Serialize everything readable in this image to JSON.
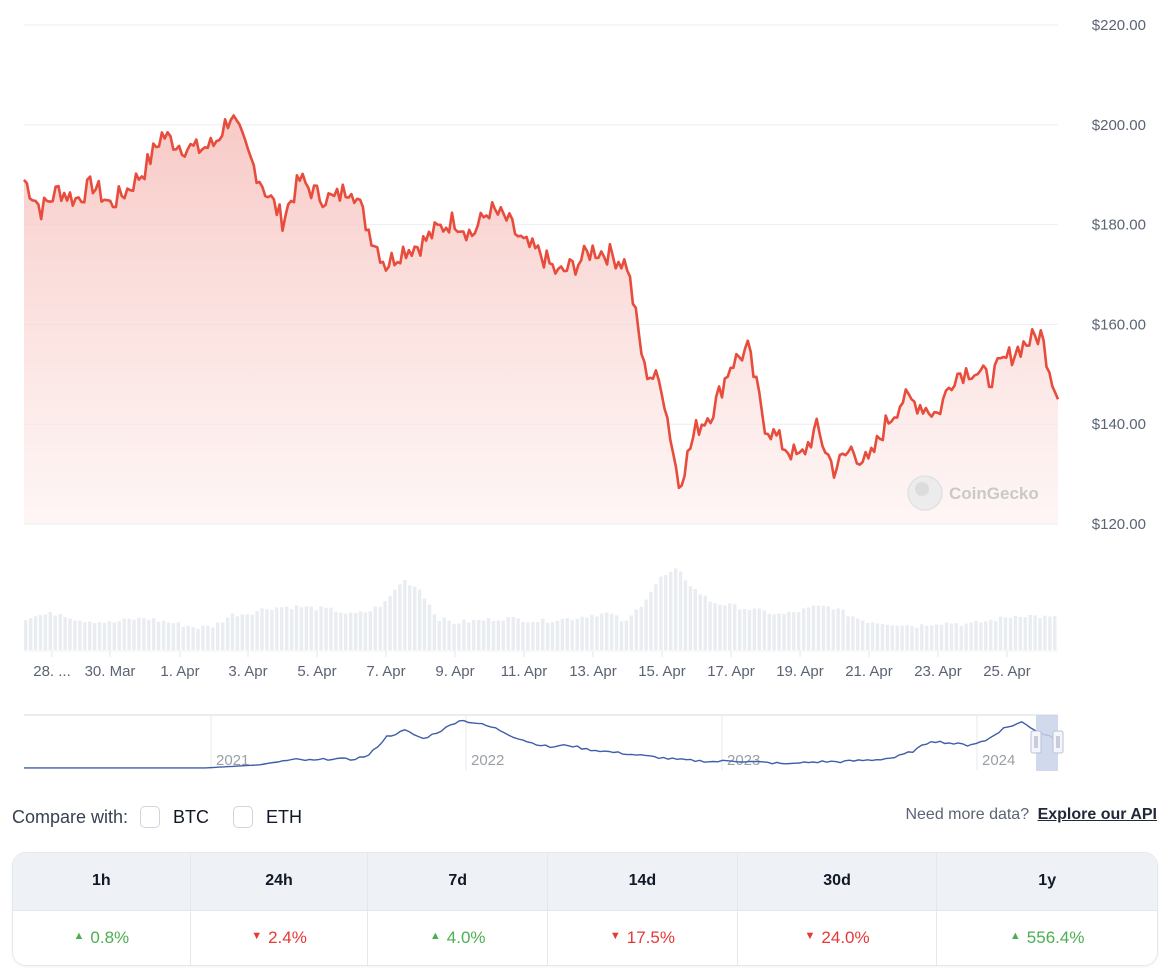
{
  "chart_data": {
    "type": "line",
    "title": "",
    "xlabel": "",
    "ylabel": "",
    "ylim": [
      120,
      220
    ],
    "y_ticks": [
      "$220.00",
      "$200.00",
      "$180.00",
      "$160.00",
      "$140.00",
      "$120.00"
    ],
    "x_ticks": [
      "28. ...",
      "30. Mar",
      "1. Apr",
      "3. Apr",
      "5. Apr",
      "7. Apr",
      "9. Apr",
      "11. Apr",
      "13. Apr",
      "15. Apr",
      "17. Apr",
      "19. Apr",
      "21. Apr",
      "23. Apr",
      "25. Apr"
    ],
    "line_color": "#e74c3c",
    "fill_color": "#f8d2d0",
    "grid": true,
    "series": [
      {
        "name": "Price (USD)",
        "x": [
          "27 Mar",
          "27.5 Mar",
          "28 Mar",
          "28.5 Mar",
          "29 Mar",
          "29.5 Mar",
          "30 Mar",
          "30.5 Mar",
          "31 Mar",
          "31.5 Mar",
          "1 Apr",
          "1.5 Apr",
          "2 Apr",
          "2.5 Apr",
          "3 Apr",
          "3.5 Apr",
          "4 Apr",
          "4.5 Apr",
          "5 Apr",
          "5.5 Apr",
          "6 Apr",
          "6.5 Apr",
          "7 Apr",
          "7.5 Apr",
          "8 Apr",
          "8.5 Apr",
          "9 Apr",
          "9.5 Apr",
          "10 Apr",
          "10.5 Apr",
          "11 Apr",
          "11.5 Apr",
          "12 Apr",
          "12.5 Apr",
          "13 Apr",
          "13.5 Apr",
          "14 Apr",
          "14.5 Apr",
          "15 Apr",
          "15.5 Apr",
          "16 Apr",
          "16.5 Apr",
          "17 Apr",
          "17.5 Apr",
          "18 Apr",
          "18.5 Apr",
          "19 Apr",
          "19.5 Apr",
          "20 Apr",
          "20.5 Apr",
          "21 Apr",
          "21.5 Apr",
          "22 Apr",
          "22.5 Apr",
          "23 Apr",
          "23.5 Apr",
          "24 Apr",
          "24.5 Apr",
          "25 Apr",
          "25.5 Apr",
          "26 Apr"
        ],
        "values": [
          189,
          183,
          187,
          185,
          188,
          184,
          187,
          191,
          198,
          196,
          195,
          196,
          202,
          194,
          187,
          181,
          189,
          186,
          185,
          188,
          179,
          172,
          175,
          176,
          179,
          181,
          178,
          183,
          181,
          176,
          174,
          170,
          172,
          175,
          174,
          172,
          151,
          148,
          128,
          139,
          143,
          152,
          155,
          140,
          136,
          133,
          139,
          131,
          135,
          132,
          140,
          145,
          144,
          142,
          150,
          151,
          149,
          153,
          156,
          158,
          145
        ]
      }
    ],
    "volume": {
      "color": "#e9ecf1",
      "values": [
        20,
        22,
        23,
        19,
        18,
        17,
        19,
        20,
        18,
        16,
        14,
        15,
        22,
        23,
        26,
        27,
        27,
        26,
        25,
        22,
        24,
        30,
        44,
        38,
        20,
        17,
        18,
        19,
        20,
        19,
        18,
        19,
        20,
        22,
        23,
        17,
        30,
        45,
        50,
        38,
        30,
        28,
        26,
        24,
        22,
        24,
        27,
        27,
        22,
        18,
        17,
        16,
        15,
        17,
        17,
        16,
        18,
        20,
        22,
        21,
        20
      ]
    },
    "navigator": {
      "line_color": "#3f5ea8",
      "year_labels": [
        "2021",
        "2022",
        "2023",
        "2024"
      ],
      "values": [
        2,
        2,
        2,
        2,
        2,
        2,
        2,
        2,
        2,
        2,
        2,
        3,
        4,
        5,
        8,
        10,
        9,
        11,
        10,
        14,
        32,
        38,
        30,
        38,
        48,
        45,
        40,
        32,
        26,
        22,
        24,
        20,
        18,
        16,
        14,
        12,
        10,
        9,
        8,
        9,
        8,
        7,
        6,
        7,
        8,
        8,
        9,
        10,
        12,
        18,
        28,
        26,
        24,
        28,
        40,
        46,
        36,
        30
      ]
    }
  },
  "watermark": {
    "text": "CoinGecko"
  },
  "compare": {
    "label": "Compare with:",
    "options": [
      {
        "label": "BTC",
        "checked": false
      },
      {
        "label": "ETH",
        "checked": false
      }
    ]
  },
  "api": {
    "prompt": "Need more data?",
    "link": "Explore our API"
  },
  "performance": {
    "headers": [
      "1h",
      "24h",
      "7d",
      "14d",
      "30d",
      "1y"
    ],
    "values": [
      {
        "text": "0.8%",
        "direction": "up"
      },
      {
        "text": "2.4%",
        "direction": "down"
      },
      {
        "text": "4.0%",
        "direction": "up"
      },
      {
        "text": "17.5%",
        "direction": "down"
      },
      {
        "text": "24.0%",
        "direction": "down"
      },
      {
        "text": "556.4%",
        "direction": "up"
      }
    ],
    "colors": {
      "up": "#4caf50",
      "down": "#e53935"
    }
  }
}
